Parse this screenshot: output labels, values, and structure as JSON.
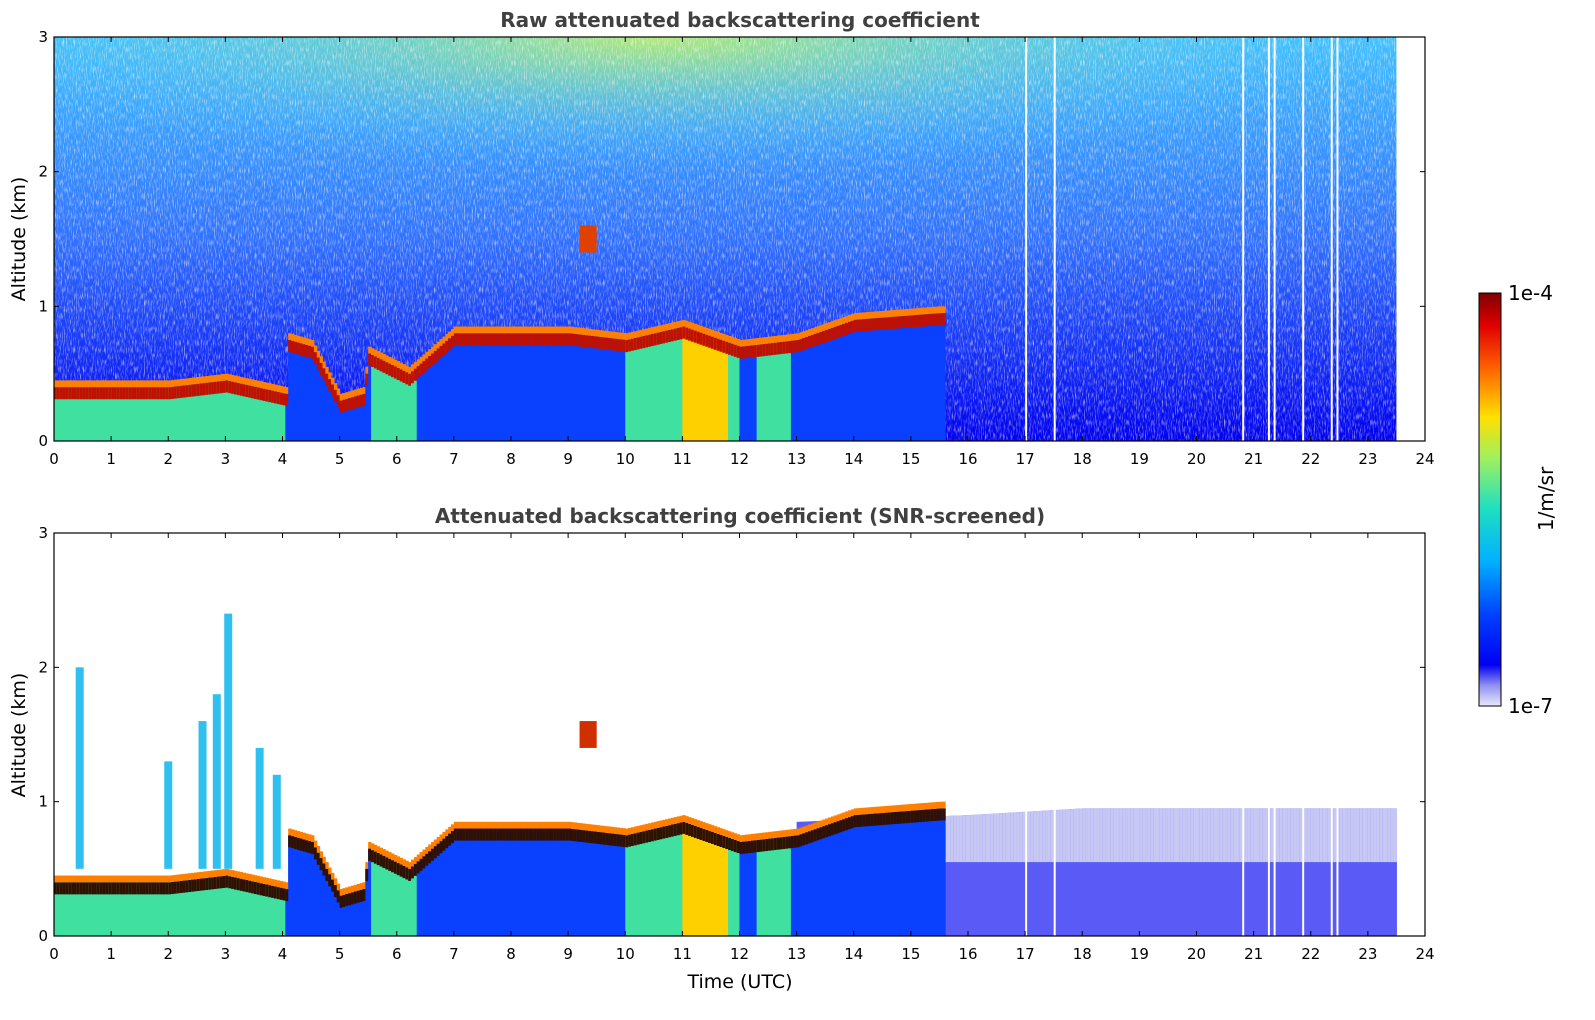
{
  "chart_data": [
    {
      "type": "heatmap",
      "title": "Raw attenuated backscattering coefficient",
      "xlabel": "",
      "ylabel": "Altitude (km)",
      "xlim": [
        0,
        24
      ],
      "ylim": [
        0,
        3
      ],
      "x_ticks": [
        "0",
        "1",
        "2",
        "3",
        "4",
        "5",
        "6",
        "7",
        "8",
        "9",
        "10",
        "11",
        "12",
        "13",
        "14",
        "15",
        "16",
        "17",
        "18",
        "19",
        "20",
        "21",
        "22",
        "23",
        "24"
      ],
      "y_ticks": [
        "0",
        "1",
        "2",
        "3"
      ],
      "data_time_range": [
        0,
        23.5
      ],
      "layer_top_km": [
        {
          "t": 0,
          "z": 0.4
        },
        {
          "t": 1,
          "z": 0.4
        },
        {
          "t": 2,
          "z": 0.4
        },
        {
          "t": 3,
          "z": 0.45
        },
        {
          "t": 4.05,
          "z": 0.35
        },
        {
          "t": 4.1,
          "z": 0.75
        },
        {
          "t": 4.5,
          "z": 0.7
        },
        {
          "t": 5.0,
          "z": 0.3
        },
        {
          "t": 5.4,
          "z": 0.35
        },
        {
          "t": 5.5,
          "z": 0.65
        },
        {
          "t": 6.2,
          "z": 0.5
        },
        {
          "t": 7.0,
          "z": 0.8
        },
        {
          "t": 8,
          "z": 0.8
        },
        {
          "t": 9,
          "z": 0.8
        },
        {
          "t": 10,
          "z": 0.75
        },
        {
          "t": 11,
          "z": 0.85
        },
        {
          "t": 12,
          "z": 0.7
        },
        {
          "t": 13,
          "z": 0.75
        },
        {
          "t": 14,
          "z": 0.9
        },
        {
          "t": 15.5,
          "z": 0.95
        }
      ],
      "elevated_layer_km": {
        "t": [
          9.2,
          9.5
        ],
        "z": [
          1.4,
          1.6
        ]
      }
    },
    {
      "type": "heatmap",
      "title": "Attenuated backscattering coefficient (SNR-screened)",
      "xlabel": "Time (UTC)",
      "ylabel": "Altitude (km)",
      "xlim": [
        0,
        24
      ],
      "ylim": [
        0,
        3
      ],
      "x_ticks": [
        "0",
        "1",
        "2",
        "3",
        "4",
        "5",
        "6",
        "7",
        "8",
        "9",
        "10",
        "11",
        "12",
        "13",
        "14",
        "15",
        "16",
        "17",
        "18",
        "19",
        "20",
        "21",
        "22",
        "23",
        "24"
      ],
      "y_ticks": [
        "0",
        "1",
        "2",
        "3"
      ],
      "data_time_range": [
        0,
        23.5
      ],
      "plume_tops_km": [
        {
          "t": 0.45,
          "z": 2.0
        },
        {
          "t": 2.0,
          "z": 1.3
        },
        {
          "t": 2.6,
          "z": 1.6
        },
        {
          "t": 2.85,
          "z": 1.8
        },
        {
          "t": 3.05,
          "z": 2.4
        },
        {
          "t": 3.6,
          "z": 1.4
        },
        {
          "t": 3.9,
          "z": 1.2
        }
      ],
      "screened_top_km": [
        {
          "t": 13,
          "z": 0.85
        },
        {
          "t": 16,
          "z": 0.9
        },
        {
          "t": 18,
          "z": 0.95
        },
        {
          "t": 20,
          "z": 0.95
        },
        {
          "t": 23.5,
          "z": 0.95
        }
      ]
    }
  ],
  "colorbar": {
    "label": "1/m/sr",
    "min_label": "1e-7",
    "max_label": "1e-4",
    "scale": "log",
    "colormap": "jet",
    "low_end_colors": [
      "#ffffff",
      "#d0d0f8",
      "#8080f0"
    ]
  }
}
